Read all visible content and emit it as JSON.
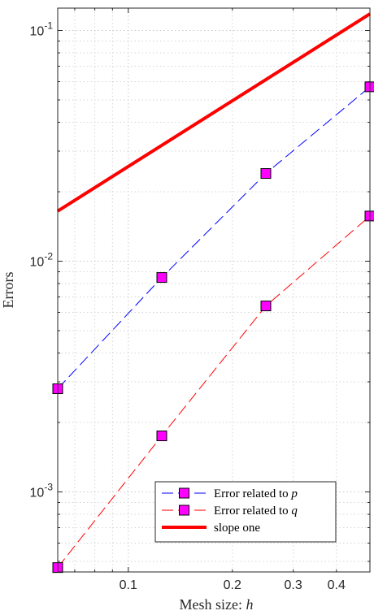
{
  "chart_data": {
    "type": "line",
    "title": "",
    "xlabel": "Mesh size: ",
    "xlabel_var": "h",
    "ylabel": "Errors",
    "xscale": "log",
    "yscale": "log",
    "xlim": [
      0.0625,
      0.5
    ],
    "ylim": [
      0.00045,
      0.125
    ],
    "grid": "major and minor (dotted)",
    "legend_position": "bottom-right",
    "x_ticks": [
      0.1,
      0.2,
      0.3,
      0.4
    ],
    "x_tick_labels": [
      "0.1",
      "0.2",
      "0.3",
      "0.4"
    ],
    "y_ticks": [
      0.001,
      0.01,
      0.1
    ],
    "y_tick_base": "10",
    "y_tick_exponents": [
      "-3",
      "-2",
      "-1"
    ],
    "series": [
      {
        "name": "Error related to ",
        "name_var": "p",
        "color": "#0000ff",
        "line_style": "dashed",
        "marker": "square",
        "marker_fill": "#ff00ff",
        "x": [
          0.0625,
          0.125,
          0.25,
          0.5
        ],
        "y": [
          0.0028,
          0.0085,
          0.024,
          0.057
        ]
      },
      {
        "name": "Error related to ",
        "name_var": "q",
        "color": "#ff0000",
        "line_style": "dashed",
        "marker": "square",
        "marker_fill": "#ff00ff",
        "x": [
          0.0625,
          0.125,
          0.25,
          0.5
        ],
        "y": [
          0.00047,
          0.00175,
          0.0064,
          0.0157
        ]
      },
      {
        "name": "slope one",
        "color": "#ff0000",
        "line_style": "solid",
        "marker": "none",
        "x": [
          0.0625,
          0.5
        ],
        "y": [
          0.0165,
          0.118
        ]
      }
    ]
  }
}
